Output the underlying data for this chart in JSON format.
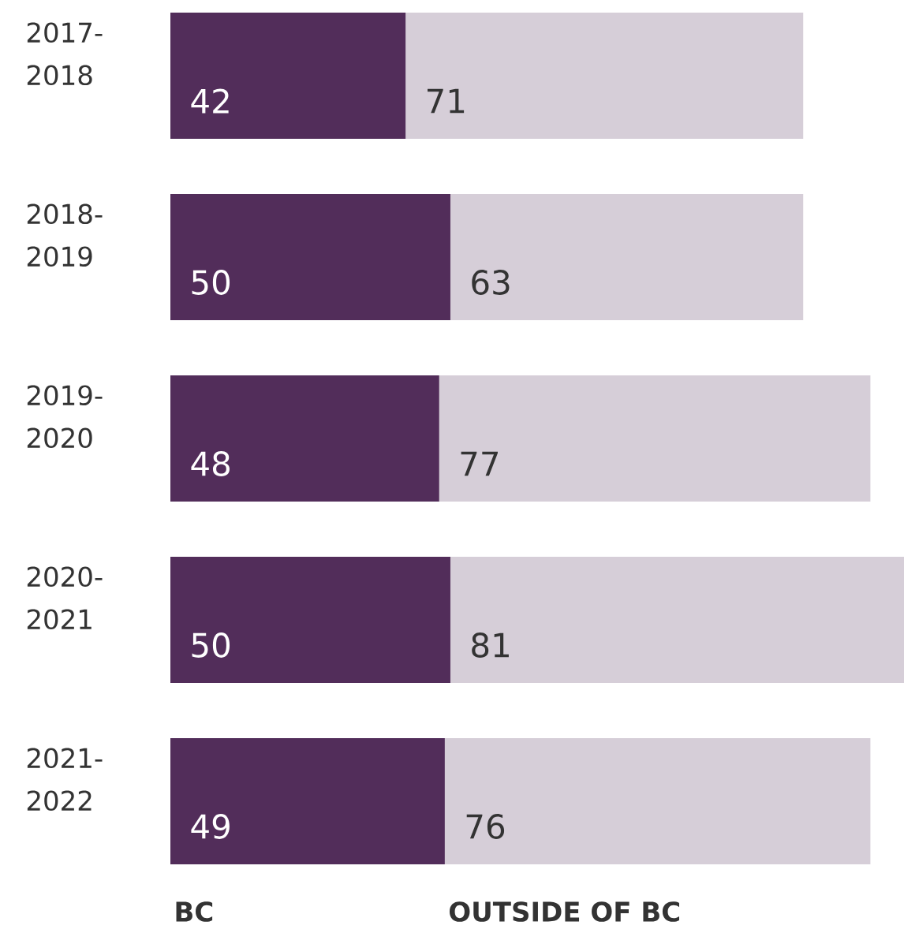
{
  "chart_data": {
    "type": "bar",
    "orientation": "horizontal",
    "stacked": true,
    "data_labels": true,
    "legend": "bottom",
    "categories": [
      "2017-2018",
      "2018-2019",
      "2019-2020",
      "2020-2021",
      "2021-2022"
    ],
    "series": [
      {
        "name": "BC",
        "color": "#522d5a",
        "values": [
          42,
          50,
          48,
          50,
          49
        ]
      },
      {
        "name": "OUTSIDE OF BC",
        "color": "#d6ced8",
        "values": [
          71,
          63,
          77,
          81,
          76
        ]
      }
    ]
  }
}
